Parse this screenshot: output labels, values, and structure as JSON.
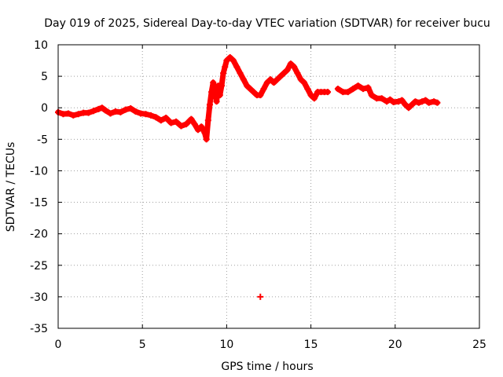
{
  "chart_data": {
    "type": "scatter",
    "title": "Day 019 of 2025, Sidereal Day-to-day VTEC variation (SDTVAR) for receiver bucu",
    "xlabel": "GPS time / hours",
    "ylabel": "SDTVAR / TECUs",
    "xlim": [
      0,
      25
    ],
    "ylim": [
      -35,
      10
    ],
    "xticks": [
      0,
      5,
      10,
      15,
      20,
      25
    ],
    "yticks": [
      10,
      5,
      0,
      -5,
      -10,
      -15,
      -20,
      -25,
      -30,
      -35
    ],
    "grid": true,
    "marker_color": "#ff0000",
    "series": [
      {
        "name": "SDTVAR",
        "points": [
          [
            0.0,
            -0.7
          ],
          [
            0.3,
            -1.0
          ],
          [
            0.6,
            -0.9
          ],
          [
            0.9,
            -1.2
          ],
          [
            1.2,
            -1.0
          ],
          [
            1.5,
            -0.8
          ],
          [
            1.8,
            -0.8
          ],
          [
            2.1,
            -0.5
          ],
          [
            2.4,
            -0.2
          ],
          [
            2.6,
            0.0
          ],
          [
            2.8,
            -0.4
          ],
          [
            3.1,
            -0.9
          ],
          [
            3.4,
            -0.6
          ],
          [
            3.7,
            -0.7
          ],
          [
            4.0,
            -0.3
          ],
          [
            4.3,
            -0.1
          ],
          [
            4.6,
            -0.6
          ],
          [
            4.9,
            -0.9
          ],
          [
            5.2,
            -1.0
          ],
          [
            5.5,
            -1.2
          ],
          [
            5.8,
            -1.5
          ],
          [
            6.1,
            -2.0
          ],
          [
            6.4,
            -1.6
          ],
          [
            6.7,
            -2.4
          ],
          [
            7.0,
            -2.2
          ],
          [
            7.3,
            -2.9
          ],
          [
            7.6,
            -2.6
          ],
          [
            7.9,
            -1.8
          ],
          [
            8.1,
            -2.6
          ],
          [
            8.3,
            -3.5
          ],
          [
            8.5,
            -3.0
          ],
          [
            8.7,
            -4.0
          ],
          [
            8.8,
            -5.0
          ],
          [
            8.9,
            -2.0
          ],
          [
            9.0,
            0.5
          ],
          [
            9.1,
            2.5
          ],
          [
            9.2,
            4.0
          ],
          [
            9.3,
            3.0
          ],
          [
            9.4,
            1.0
          ],
          [
            9.5,
            3.5
          ],
          [
            9.6,
            2.0
          ],
          [
            9.7,
            3.5
          ],
          [
            9.8,
            5.5
          ],
          [
            9.9,
            6.5
          ],
          [
            10.0,
            7.5
          ],
          [
            10.2,
            8.0
          ],
          [
            10.4,
            7.5
          ],
          [
            10.6,
            6.5
          ],
          [
            10.8,
            5.5
          ],
          [
            11.0,
            4.5
          ],
          [
            11.2,
            3.5
          ],
          [
            11.4,
            3.0
          ],
          [
            11.6,
            2.5
          ],
          [
            11.8,
            2.0
          ],
          [
            12.0,
            2.0
          ],
          [
            12.2,
            3.0
          ],
          [
            12.4,
            4.0
          ],
          [
            12.6,
            4.5
          ],
          [
            12.8,
            4.0
          ],
          [
            13.0,
            4.5
          ],
          [
            13.2,
            5.0
          ],
          [
            13.4,
            5.5
          ],
          [
            13.6,
            6.0
          ],
          [
            13.8,
            7.0
          ],
          [
            14.0,
            6.5
          ],
          [
            14.2,
            5.5
          ],
          [
            14.4,
            4.5
          ],
          [
            14.6,
            4.0
          ],
          [
            14.8,
            3.0
          ],
          [
            15.0,
            2.0
          ],
          [
            15.2,
            1.5
          ],
          [
            15.4,
            2.5
          ],
          [
            15.6,
            2.5
          ],
          [
            15.8,
            2.5
          ],
          [
            16.0,
            2.5
          ],
          [
            16.6,
            3.0
          ],
          [
            16.9,
            2.5
          ],
          [
            17.2,
            2.5
          ],
          [
            17.5,
            3.0
          ],
          [
            17.8,
            3.5
          ],
          [
            18.1,
            3.0
          ],
          [
            18.4,
            3.2
          ],
          [
            18.6,
            2.0
          ],
          [
            18.9,
            1.5
          ],
          [
            19.2,
            1.5
          ],
          [
            19.5,
            1.0
          ],
          [
            19.7,
            1.3
          ],
          [
            19.9,
            0.9
          ],
          [
            20.2,
            1.0
          ],
          [
            20.4,
            1.2
          ],
          [
            20.6,
            0.5
          ],
          [
            20.8,
            0.0
          ],
          [
            21.0,
            0.5
          ],
          [
            21.2,
            1.0
          ],
          [
            21.4,
            0.8
          ],
          [
            21.6,
            1.0
          ],
          [
            21.8,
            1.2
          ],
          [
            22.0,
            0.8
          ],
          [
            22.3,
            1.0
          ],
          [
            22.5,
            0.8
          ],
          [
            12.0,
            -30.0
          ]
        ]
      }
    ]
  }
}
